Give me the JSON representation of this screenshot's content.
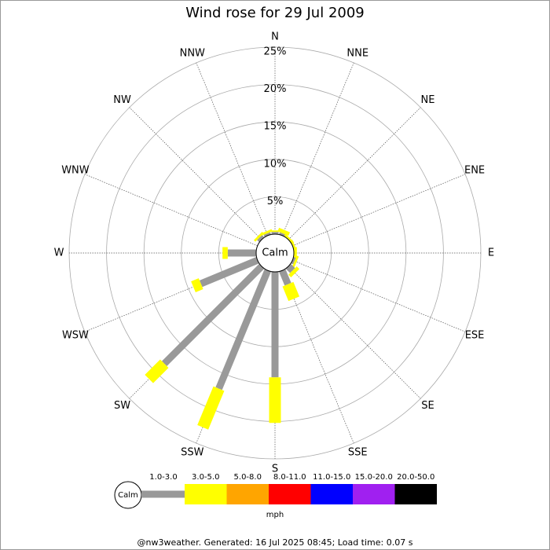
{
  "chart_data": {
    "type": "windrose",
    "title": "Wind rose for 29 Jul 2009",
    "categories": [
      "N",
      "NNE",
      "NE",
      "ENE",
      "E",
      "ESE",
      "SE",
      "SSE",
      "S",
      "SSW",
      "SW",
      "WSW",
      "W",
      "WNW",
      "NW",
      "NNW"
    ],
    "series": [
      {
        "name": "1.0-3.0",
        "color": "#999999",
        "values": [
          0.3,
          0.3,
          0,
          0,
          0,
          0.3,
          0.8,
          2.0,
          14.1,
          17.1,
          18.4,
          8.2,
          3.8,
          0,
          0.4,
          0.3
        ]
      },
      {
        "name": "3.0-5.0",
        "color": "#ffff00",
        "values": [
          0.2,
          0.5,
          0.3,
          0.3,
          0.4,
          0.3,
          0.5,
          2.1,
          6.1,
          5.6,
          2.9,
          1.1,
          0.7,
          0,
          0.3,
          0.3
        ]
      },
      {
        "name": "5.0-8.0",
        "color": "#ffa500",
        "values": [
          0,
          0,
          0,
          0,
          0,
          0,
          0,
          0,
          0,
          0,
          0,
          0,
          0,
          0,
          0,
          0
        ]
      },
      {
        "name": "8.0-11.0",
        "color": "#ff0000",
        "values": [
          0,
          0,
          0,
          0,
          0,
          0,
          0,
          0,
          0,
          0,
          0,
          0,
          0,
          0,
          0,
          0
        ]
      },
      {
        "name": "11.0-15.0",
        "color": "#0000ff",
        "values": [
          0,
          0,
          0,
          0,
          0,
          0,
          0,
          0,
          0,
          0,
          0,
          0,
          0,
          0,
          0,
          0
        ]
      },
      {
        "name": "15.0-20.0",
        "color": "#a020f0",
        "values": [
          0,
          0,
          0,
          0,
          0,
          0,
          0,
          0,
          0,
          0,
          0,
          0,
          0,
          0,
          0,
          0
        ]
      },
      {
        "name": "20.0-50.0",
        "color": "#000000",
        "values": [
          0,
          0,
          0,
          0,
          0,
          0,
          0,
          0,
          0,
          0,
          0,
          0,
          0,
          0,
          0,
          0
        ]
      }
    ],
    "rlim": [
      0,
      25
    ],
    "rticks": [
      {
        "value": 5,
        "label": "5%"
      },
      {
        "value": 10,
        "label": "10%"
      },
      {
        "value": 15,
        "label": "15%"
      },
      {
        "value": 20,
        "label": "20%"
      },
      {
        "value": 25,
        "label": "25%"
      }
    ],
    "calm_label": "Calm",
    "legend_title": "mph",
    "footer": "@nw3weather. Generated: 16 Jul 2025 08:45; Load time: 0.07 s"
  }
}
